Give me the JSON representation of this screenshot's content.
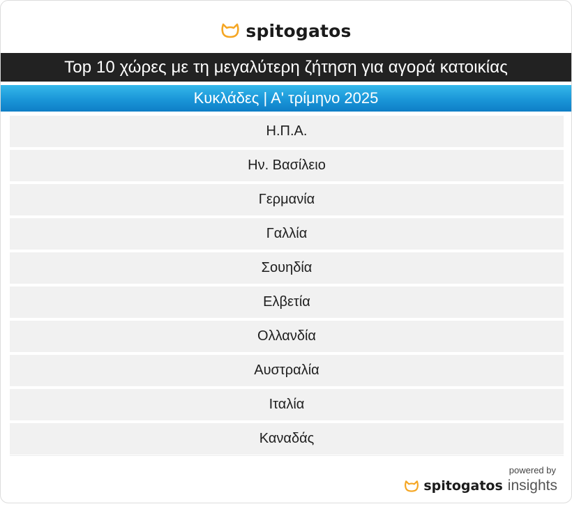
{
  "brand": {
    "name": "spitogatos",
    "accent": "#f5a623",
    "logo_icon": "cat-icon"
  },
  "title": "Top 10 χώρες με τη μεγαλύτερη ζήτηση για αγορά κατοικίας",
  "subtitle": "Κυκλάδες | Α' τρίμηνο 2025",
  "countries": [
    "Η.Π.Α.",
    "Ην. Βασίλειο",
    "Γερμανία",
    "Γαλλία",
    "Σουηδία",
    "Ελβετία",
    "Ολλανδία",
    "Αυστραλία",
    "Ιταλία",
    "Καναδάς"
  ],
  "footer": {
    "powered_by": "powered by",
    "brand_name": "spitogatos",
    "brand_suffix": "insights"
  },
  "colors": {
    "title_bar": "#222222",
    "subtitle_bar": "#1a96d8",
    "row_bg": "#f1f1f1"
  }
}
